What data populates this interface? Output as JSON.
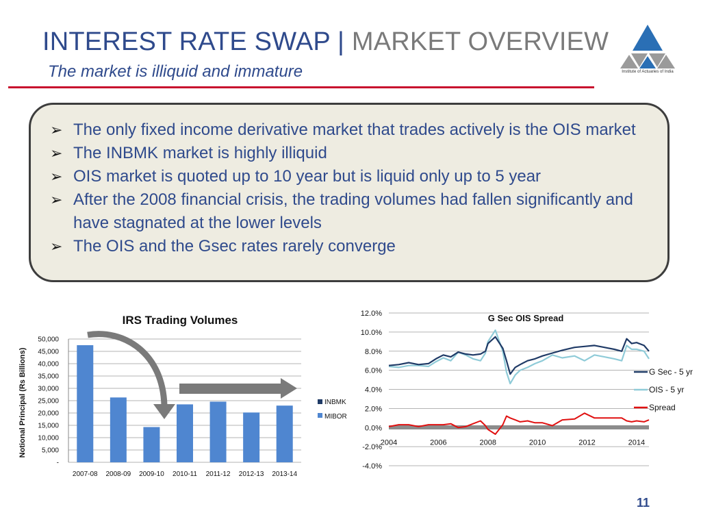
{
  "header": {
    "title_main": "INTEREST RATE SWAP |",
    "title_accent": " MARKET OVERVIEW",
    "subtitle": "The market is illiquid and immature"
  },
  "logo": {
    "caption": "Institute of Actuaries of India"
  },
  "bullets": [
    "The only fixed income derivative market that trades actively is the OIS market",
    "The INBMK market is highly illiquid",
    "OIS market is quoted up to 10 year but is liquid only up to 5 year",
    "After the 2008 financial crisis, the trading volumes had fallen significantly and have stagnated at the lower levels",
    "The OIS and the Gsec rates rarely converge"
  ],
  "page_number": "11",
  "colors": {
    "title_blue": "#2f4a8c",
    "bar_mibor": "#4f86d0",
    "inbmk": "#1f3a66",
    "gsec": "#1f3a66",
    "ois": "#8fcbd8",
    "spread": "#e01010"
  },
  "chart_data": [
    {
      "type": "bar",
      "title": "IRS Trading Volumes",
      "ylabel": "Notional Principal (Rs Billions)",
      "ylim": [
        0,
        50000
      ],
      "y_ticks": [
        "-",
        "5,000",
        "10,000",
        "15,000",
        "20,000",
        "25,000",
        "30,000",
        "35,000",
        "40,000",
        "45,000",
        "50,000"
      ],
      "categories": [
        "2007-08",
        "2008-09",
        "2009-10",
        "2010-11",
        "2011-12",
        "2012-13",
        "2013-14"
      ],
      "series": [
        {
          "name": "INBMK",
          "values": [
            0,
            0,
            0,
            0,
            0,
            0,
            0
          ]
        },
        {
          "name": "MIBOR",
          "values": [
            47500,
            26300,
            14300,
            23500,
            24600,
            20200,
            23000
          ]
        }
      ],
      "legend": "right",
      "grid": true
    },
    {
      "type": "line",
      "title": "G Sec OIS Spread",
      "ylim": [
        -4.0,
        12.0
      ],
      "y_ticks": [
        "-4.0%",
        "-2.0%",
        "0.0%",
        "2.0%",
        "4.0%",
        "6.0%",
        "8.0%",
        "10.0%",
        "12.0%"
      ],
      "x_ticks": [
        "2004",
        "2006",
        "2008",
        "2010",
        "2012",
        "2014"
      ],
      "xlim": [
        2004,
        2014.5
      ],
      "legend": "right",
      "grid": true,
      "series": [
        {
          "name": "G Sec - 5 yr",
          "x": [
            2004.0,
            2004.4,
            2004.8,
            2005.2,
            2005.6,
            2005.9,
            2006.2,
            2006.5,
            2006.8,
            2007.1,
            2007.4,
            2007.7,
            2007.9,
            2008.0,
            2008.3,
            2008.6,
            2008.75,
            2008.9,
            2009.1,
            2009.3,
            2009.6,
            2009.9,
            2010.2,
            2010.6,
            2011.0,
            2011.5,
            2011.9,
            2012.3,
            2012.7,
            2013.1,
            2013.4,
            2013.6,
            2013.8,
            2014.0,
            2014.3,
            2014.5
          ],
          "y": [
            6.5,
            6.6,
            6.8,
            6.6,
            6.7,
            7.2,
            7.6,
            7.4,
            7.9,
            7.7,
            7.6,
            7.7,
            8.0,
            8.8,
            9.5,
            8.3,
            7.0,
            5.6,
            6.3,
            6.6,
            7.0,
            7.2,
            7.5,
            7.8,
            8.1,
            8.4,
            8.5,
            8.6,
            8.4,
            8.2,
            8.0,
            9.3,
            8.8,
            8.9,
            8.6,
            8.0
          ]
        },
        {
          "name": "OIS - 5 yr",
          "x": [
            2004.0,
            2004.4,
            2004.8,
            2005.2,
            2005.6,
            2005.9,
            2006.2,
            2006.5,
            2006.8,
            2007.1,
            2007.4,
            2007.7,
            2007.9,
            2008.0,
            2008.3,
            2008.6,
            2008.75,
            2008.9,
            2009.1,
            2009.3,
            2009.6,
            2009.9,
            2010.2,
            2010.6,
            2011.0,
            2011.5,
            2011.9,
            2012.3,
            2012.7,
            2013.1,
            2013.4,
            2013.6,
            2013.8,
            2014.0,
            2014.3,
            2014.5
          ],
          "y": [
            6.4,
            6.3,
            6.5,
            6.5,
            6.4,
            6.9,
            7.3,
            7.0,
            7.9,
            7.6,
            7.2,
            7.0,
            7.8,
            9.0,
            10.2,
            8.0,
            5.8,
            4.6,
            5.5,
            6.0,
            6.3,
            6.7,
            7.0,
            7.6,
            7.3,
            7.5,
            7.0,
            7.6,
            7.4,
            7.2,
            7.0,
            8.6,
            8.2,
            8.2,
            8.0,
            7.2
          ]
        },
        {
          "name": "Spread",
          "x": [
            2004.0,
            2004.4,
            2004.8,
            2005.2,
            2005.6,
            2005.9,
            2006.2,
            2006.5,
            2006.8,
            2007.1,
            2007.4,
            2007.7,
            2007.9,
            2008.0,
            2008.3,
            2008.6,
            2008.75,
            2008.9,
            2009.1,
            2009.3,
            2009.6,
            2009.9,
            2010.2,
            2010.6,
            2011.0,
            2011.5,
            2011.9,
            2012.3,
            2012.7,
            2013.1,
            2013.4,
            2013.6,
            2013.8,
            2014.0,
            2014.3,
            2014.5
          ],
          "y": [
            0.1,
            0.3,
            0.3,
            0.1,
            0.3,
            0.3,
            0.3,
            0.4,
            0.0,
            0.1,
            0.4,
            0.7,
            0.2,
            -0.2,
            -0.7,
            0.3,
            1.2,
            1.0,
            0.8,
            0.6,
            0.7,
            0.5,
            0.5,
            0.2,
            0.8,
            0.9,
            1.5,
            1.0,
            1.0,
            1.0,
            1.0,
            0.7,
            0.6,
            0.7,
            0.6,
            0.8
          ]
        }
      ]
    }
  ]
}
